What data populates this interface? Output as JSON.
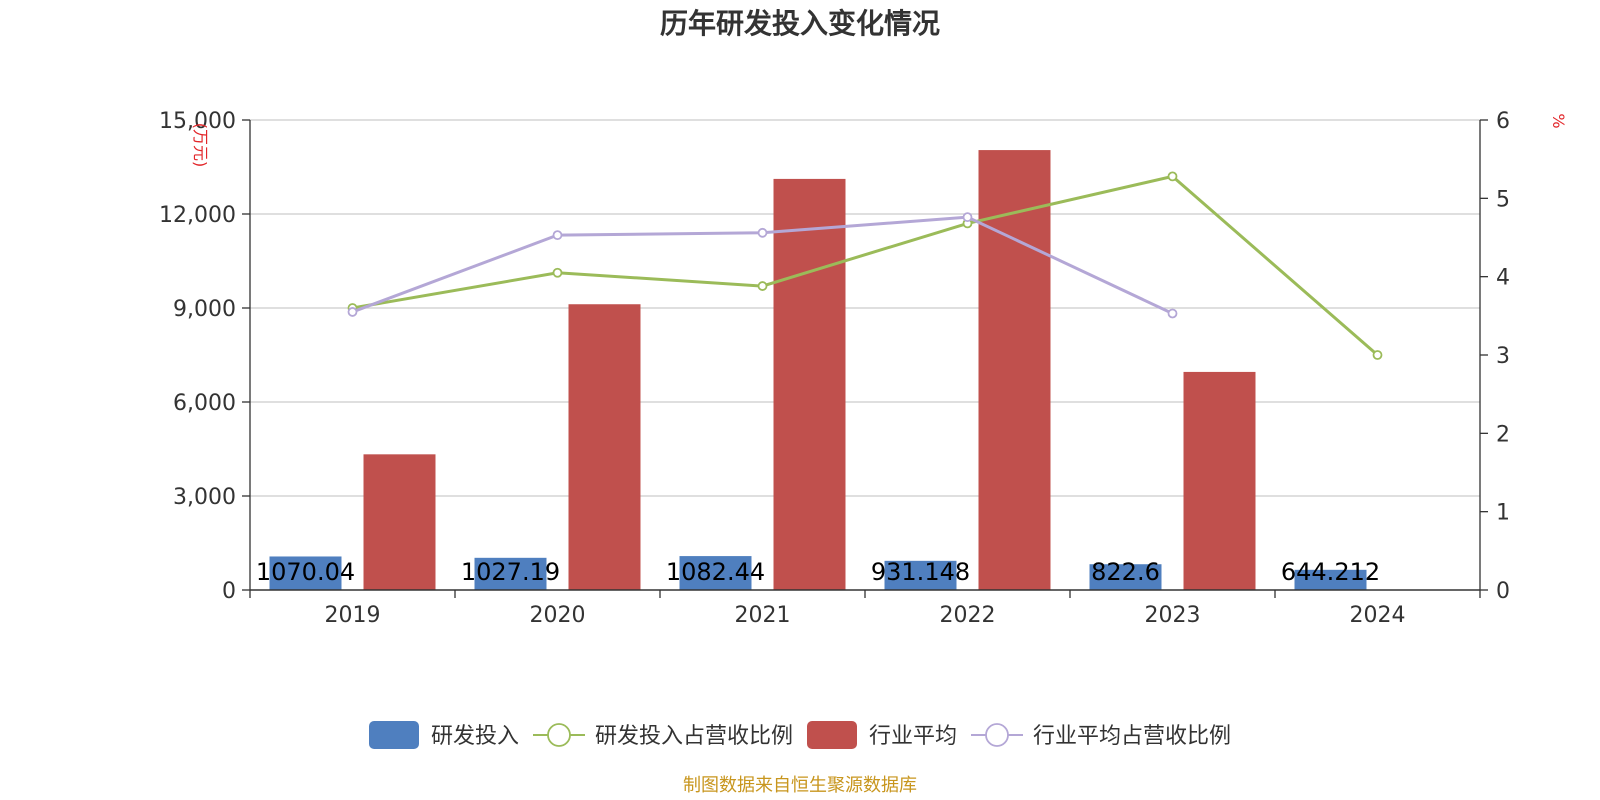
{
  "title": "历年研发投入变化情况",
  "source_note": "制图数据来自恒生聚源数据库",
  "chart_data": {
    "type": "bar",
    "categories": [
      "2019",
      "2020",
      "2021",
      "2022",
      "2023",
      "2024"
    ],
    "left_axis": {
      "unit": "(万元)",
      "ylim": [
        0,
        15000
      ],
      "ticks": [
        0,
        3000,
        6000,
        9000,
        12000,
        15000
      ],
      "tick_labels": [
        "0",
        "3,000",
        "6,000",
        "9,000",
        "12,000",
        "15,000"
      ]
    },
    "right_axis": {
      "unit": "%",
      "ylim": [
        0,
        6
      ],
      "ticks": [
        0,
        1,
        2,
        3,
        4,
        5,
        6
      ],
      "tick_labels": [
        "0",
        "1",
        "2",
        "3",
        "4",
        "5",
        "6"
      ]
    },
    "grid": true,
    "legend_position": "bottom",
    "series": [
      {
        "name": "研发投入",
        "type": "bar",
        "axis": "left",
        "color": "#4f7fbf",
        "values": [
          1070.04,
          1027.19,
          1082.44,
          931.148,
          822.6,
          644.212
        ],
        "data_labels": [
          "1070.04",
          "1027.19",
          "1082.44",
          "931.148",
          "822.6",
          "644.212"
        ]
      },
      {
        "name": "研发投入占营收比例",
        "type": "line",
        "axis": "right",
        "color": "#9bbb59",
        "values": [
          3.6,
          4.05,
          3.88,
          4.68,
          5.28,
          3.0
        ]
      },
      {
        "name": "行业平均",
        "type": "bar",
        "axis": "left",
        "color": "#c0504d",
        "values": [
          4330,
          9120,
          13120,
          14040,
          6960,
          null
        ]
      },
      {
        "name": "行业平均占营收比例",
        "type": "line",
        "axis": "right",
        "color": "#b4a7d6",
        "values": [
          3.55,
          4.53,
          4.56,
          4.76,
          3.53,
          null
        ]
      }
    ]
  }
}
